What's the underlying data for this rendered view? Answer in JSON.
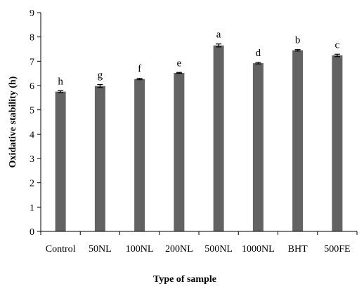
{
  "chart_data": {
    "type": "bar",
    "title": "",
    "xlabel": "Type of sample",
    "ylabel": "Oxidative stability (h)",
    "ylim": [
      0,
      9
    ],
    "yticks": [
      0,
      1,
      2,
      3,
      4,
      5,
      6,
      7,
      8,
      9
    ],
    "grid": false,
    "categories": [
      "Control",
      "50NL",
      "100NL",
      "200NL",
      "500NL",
      "1000NL",
      "BHT",
      "500FE"
    ],
    "values": [
      5.75,
      5.98,
      6.27,
      6.52,
      7.65,
      6.92,
      7.45,
      7.24
    ],
    "errors": [
      0.04,
      0.06,
      0.03,
      0.02,
      0.06,
      0.03,
      0.03,
      0.05
    ],
    "significance_letters": [
      "h",
      "g",
      "f",
      "e",
      "a",
      "d",
      "b",
      "c"
    ],
    "colors": {
      "bar": "#636363",
      "axis": "#000000",
      "error_bar": "#000000"
    }
  }
}
